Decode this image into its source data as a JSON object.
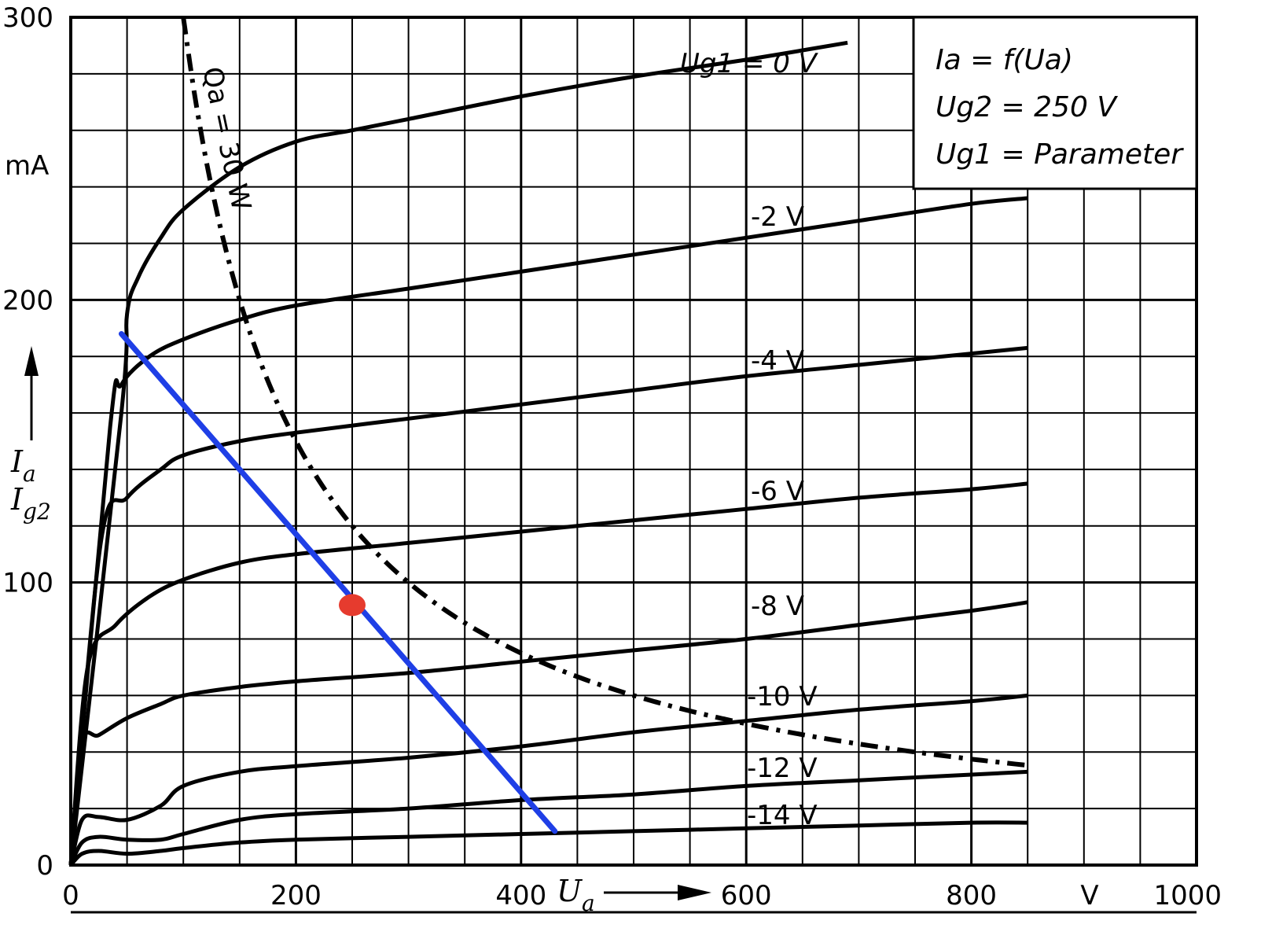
{
  "chart_data": {
    "type": "line",
    "xlabel": "U",
    "xlabel_sub": "a",
    "x_unit": "V",
    "ylabels": [
      {
        "main": "I",
        "sub": "a"
      },
      {
        "main": "I",
        "sub": "g2"
      }
    ],
    "y_unit": "mA",
    "xlim": [
      0,
      1000
    ],
    "ylim": [
      0,
      300
    ],
    "x_ticks": [
      0,
      200,
      400,
      600,
      800,
      1000
    ],
    "x_tick_labels": [
      "0",
      "200",
      "400",
      "600",
      "800",
      "1000"
    ],
    "y_ticks": [
      0,
      100,
      200,
      300
    ],
    "y_tick_labels": [
      "0",
      "100",
      "200",
      "300"
    ],
    "grid": true,
    "legend_box": {
      "position": "top-right",
      "lines": [
        "Ia = f(Ua)",
        "Ug2 = 250 V",
        "Ug1 = Parameter"
      ]
    },
    "series": [
      {
        "name": "Ug1 = 0 V",
        "label": "Ug1 = 0 V",
        "points": [
          [
            0,
            0
          ],
          [
            45,
            160
          ],
          [
            50,
            195
          ],
          [
            60,
            208
          ],
          [
            80,
            222
          ],
          [
            100,
            232
          ],
          [
            150,
            247
          ],
          [
            200,
            256
          ],
          [
            250,
            260
          ],
          [
            300,
            264
          ],
          [
            400,
            272
          ],
          [
            500,
            279
          ],
          [
            600,
            285
          ],
          [
            690,
            291
          ]
        ]
      },
      {
        "name": "-2 V",
        "label": "-2 V",
        "points": [
          [
            0,
            0
          ],
          [
            35,
            155
          ],
          [
            45,
            170
          ],
          [
            70,
            180
          ],
          [
            100,
            186
          ],
          [
            150,
            193
          ],
          [
            200,
            198
          ],
          [
            300,
            204
          ],
          [
            400,
            210
          ],
          [
            500,
            216
          ],
          [
            600,
            222
          ],
          [
            700,
            228
          ],
          [
            800,
            234
          ],
          [
            850,
            236
          ]
        ]
      },
      {
        "name": "-4 V",
        "label": "-4 V",
        "points": [
          [
            0,
            0
          ],
          [
            27,
            115
          ],
          [
            50,
            130
          ],
          [
            80,
            140
          ],
          [
            100,
            145
          ],
          [
            150,
            150
          ],
          [
            200,
            153
          ],
          [
            300,
            158
          ],
          [
            400,
            163
          ],
          [
            500,
            168
          ],
          [
            600,
            173
          ],
          [
            700,
            177
          ],
          [
            800,
            181
          ],
          [
            850,
            183
          ]
        ]
      },
      {
        "name": "-6 V",
        "label": "-6 V",
        "points": [
          [
            0,
            0
          ],
          [
            15,
            70
          ],
          [
            40,
            85
          ],
          [
            70,
            95
          ],
          [
            100,
            101
          ],
          [
            150,
            107
          ],
          [
            200,
            110
          ],
          [
            300,
            114
          ],
          [
            400,
            118
          ],
          [
            500,
            122
          ],
          [
            600,
            126
          ],
          [
            700,
            130
          ],
          [
            800,
            133
          ],
          [
            850,
            135
          ]
        ]
      },
      {
        "name": "-8 V",
        "label": "-8 V",
        "points": [
          [
            0,
            0
          ],
          [
            10,
            43
          ],
          [
            25,
            46
          ],
          [
            50,
            52
          ],
          [
            80,
            57
          ],
          [
            100,
            60
          ],
          [
            150,
            63
          ],
          [
            200,
            65
          ],
          [
            300,
            68
          ],
          [
            400,
            72
          ],
          [
            500,
            76
          ],
          [
            600,
            80
          ],
          [
            700,
            85
          ],
          [
            800,
            90
          ],
          [
            850,
            93
          ]
        ]
      },
      {
        "name": "-10 V",
        "label": "-10 V",
        "points": [
          [
            0,
            0
          ],
          [
            10,
            16
          ],
          [
            25,
            17
          ],
          [
            50,
            16
          ],
          [
            80,
            21
          ],
          [
            100,
            28
          ],
          [
            150,
            33
          ],
          [
            200,
            35
          ],
          [
            300,
            38
          ],
          [
            400,
            42
          ],
          [
            500,
            47
          ],
          [
            600,
            51
          ],
          [
            700,
            55
          ],
          [
            800,
            58
          ],
          [
            850,
            60
          ]
        ]
      },
      {
        "name": "-12 V",
        "label": "-12 V",
        "points": [
          [
            0,
            0
          ],
          [
            10,
            8
          ],
          [
            25,
            10
          ],
          [
            50,
            9
          ],
          [
            80,
            9
          ],
          [
            100,
            11
          ],
          [
            150,
            16
          ],
          [
            200,
            18
          ],
          [
            300,
            20
          ],
          [
            400,
            23
          ],
          [
            500,
            25
          ],
          [
            600,
            28
          ],
          [
            700,
            30
          ],
          [
            800,
            32
          ],
          [
            850,
            33
          ]
        ]
      },
      {
        "name": "-14 V",
        "label": "-14 V",
        "points": [
          [
            0,
            0
          ],
          [
            10,
            4
          ],
          [
            25,
            5
          ],
          [
            50,
            4
          ],
          [
            80,
            5
          ],
          [
            100,
            6
          ],
          [
            150,
            8
          ],
          [
            200,
            9
          ],
          [
            300,
            10
          ],
          [
            400,
            11
          ],
          [
            500,
            12
          ],
          [
            600,
            13
          ],
          [
            700,
            14
          ],
          [
            800,
            15
          ],
          [
            850,
            15
          ]
        ]
      }
    ],
    "power_curve": {
      "label": "Qa = 30 W",
      "watts": 30,
      "x_from": 100,
      "x_to": 850
    },
    "load_line": {
      "points": [
        [
          45,
          188
        ],
        [
          430,
          12
        ]
      ],
      "color": "#1f3fe6"
    },
    "operating_point": {
      "point": [
        250,
        92
      ],
      "color": "#e63b2e"
    }
  }
}
